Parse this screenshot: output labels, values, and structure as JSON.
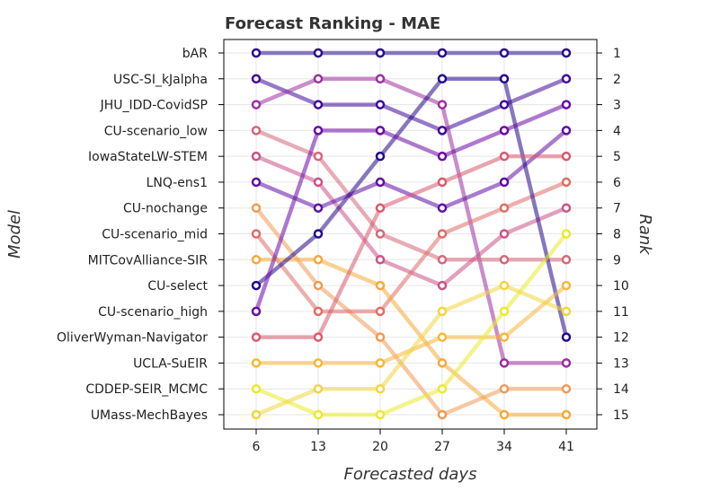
{
  "chart_data": {
    "type": "line",
    "title": "Forecast Ranking - MAE",
    "xlabel": "Forecasted days",
    "ylabel": "Model",
    "ylabel_right": "Rank",
    "x": [
      6,
      13,
      20,
      27,
      34,
      41
    ],
    "y_categories": [
      "bAR",
      "USC-SI_kJalpha",
      "JHU_IDD-CovidSP",
      "CU-scenario_low",
      "IowaStateLW-STEM",
      "LNQ-ens1",
      "CU-nochange",
      "CU-scenario_mid",
      "MITCovAlliance-SIR",
      "CU-select",
      "CU-scenario_high",
      "OliverWyman-Navigator",
      "UCLA-SuEIR",
      "CDDEP-SEIR_MCMC",
      "UMass-MechBayes"
    ],
    "rank_ticks": [
      1,
      2,
      3,
      4,
      5,
      6,
      7,
      8,
      9,
      10,
      11,
      12,
      13,
      14,
      15
    ],
    "ylim": [
      1,
      15
    ],
    "y_inverted": true,
    "grid": true,
    "series": [
      {
        "color": "#2a0c8f",
        "values": [
          1,
          1,
          1,
          1,
          1,
          1
        ]
      },
      {
        "color": "#3f0a9b",
        "values": [
          2,
          3,
          3,
          4,
          3,
          2
        ]
      },
      {
        "color": "#9c2fa0",
        "values": [
          3,
          2,
          2,
          3,
          13,
          13
        ]
      },
      {
        "color": "#d4687a",
        "values": [
          4,
          5,
          8,
          9,
          9,
          9
        ]
      },
      {
        "color": "#cc5287",
        "values": [
          5,
          6,
          9,
          10,
          8,
          7
        ]
      },
      {
        "color": "#5e0fa5",
        "values": [
          6,
          7,
          6,
          7,
          6,
          4
        ]
      },
      {
        "color": "#f09a55",
        "values": [
          7,
          10,
          12,
          15,
          14,
          14
        ]
      },
      {
        "color": "#df6e66",
        "values": [
          8,
          11,
          11,
          8,
          7,
          6
        ]
      },
      {
        "color": "#f5a93a",
        "values": [
          9,
          9,
          10,
          13,
          15,
          15
        ]
      },
      {
        "color": "#24078a",
        "values": [
          10,
          8,
          5,
          2,
          2,
          12
        ]
      },
      {
        "color": "#6b0aa6",
        "values": [
          11,
          4,
          4,
          5,
          4,
          3
        ]
      },
      {
        "color": "#d95a6d",
        "values": [
          12,
          12,
          7,
          6,
          5,
          5
        ]
      },
      {
        "color": "#f7b73b",
        "values": [
          13,
          13,
          13,
          12,
          12,
          10
        ]
      },
      {
        "color": "#eaea2a",
        "values": [
          14,
          15,
          15,
          14,
          11,
          8
        ]
      },
      {
        "color": "#f1d63d",
        "values": [
          15,
          14,
          14,
          11,
          10,
          11
        ]
      }
    ]
  }
}
